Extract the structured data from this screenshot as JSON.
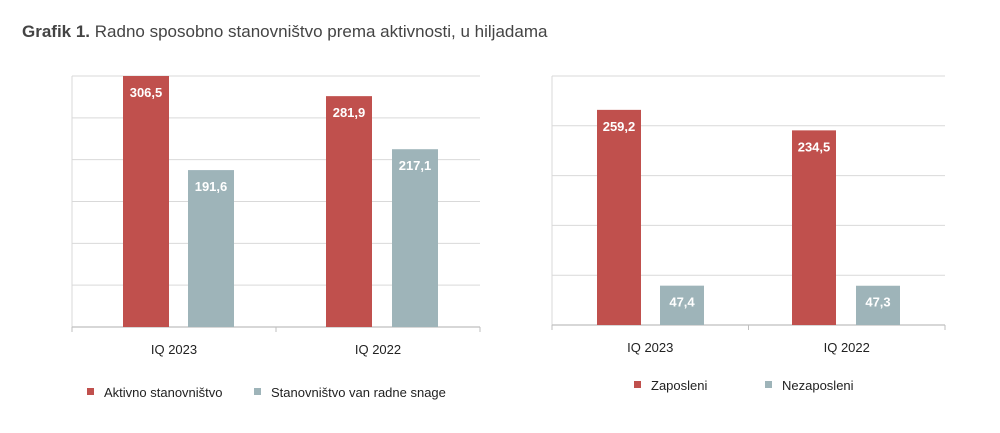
{
  "title": {
    "prefix": "Grafik 1.",
    "text": "Radno sposobno stanovništvo prema aktivnosti, u hiljadama"
  },
  "colors": {
    "red": "#C0504D",
    "gray": "#9EB4B9",
    "grid": "#D9D9D9",
    "axis": "#BFBFBF"
  },
  "chart_data": [
    {
      "type": "bar",
      "categories": [
        "IQ 2023",
        "IQ 2022"
      ],
      "series": [
        {
          "name": "Aktivno stanovništvo",
          "values": [
            306.5,
            281.9
          ],
          "labels": [
            "306,5",
            "281,9"
          ],
          "color": "#C0504D"
        },
        {
          "name": "Stanovništvo van radne snage",
          "values": [
            191.6,
            217.1
          ],
          "labels": [
            "191,6",
            "217,1"
          ],
          "color": "#9EB4B9"
        }
      ],
      "ylim": [
        0,
        306.5
      ],
      "gridlines": 6,
      "grid": true,
      "legend": "bottom"
    },
    {
      "type": "bar",
      "categories": [
        "IQ 2023",
        "IQ 2022"
      ],
      "series": [
        {
          "name": "Zaposleni",
          "values": [
            259.2,
            234.5
          ],
          "labels": [
            "259,2",
            "234,5"
          ],
          "color": "#C0504D"
        },
        {
          "name": "Nezaposleni",
          "values": [
            47.4,
            47.3
          ],
          "labels": [
            "47,4",
            "47,3"
          ],
          "color": "#9EB4B9"
        }
      ],
      "ylim": [
        0,
        300
      ],
      "gridlines": 5,
      "grid": true,
      "legend": "bottom"
    }
  ]
}
